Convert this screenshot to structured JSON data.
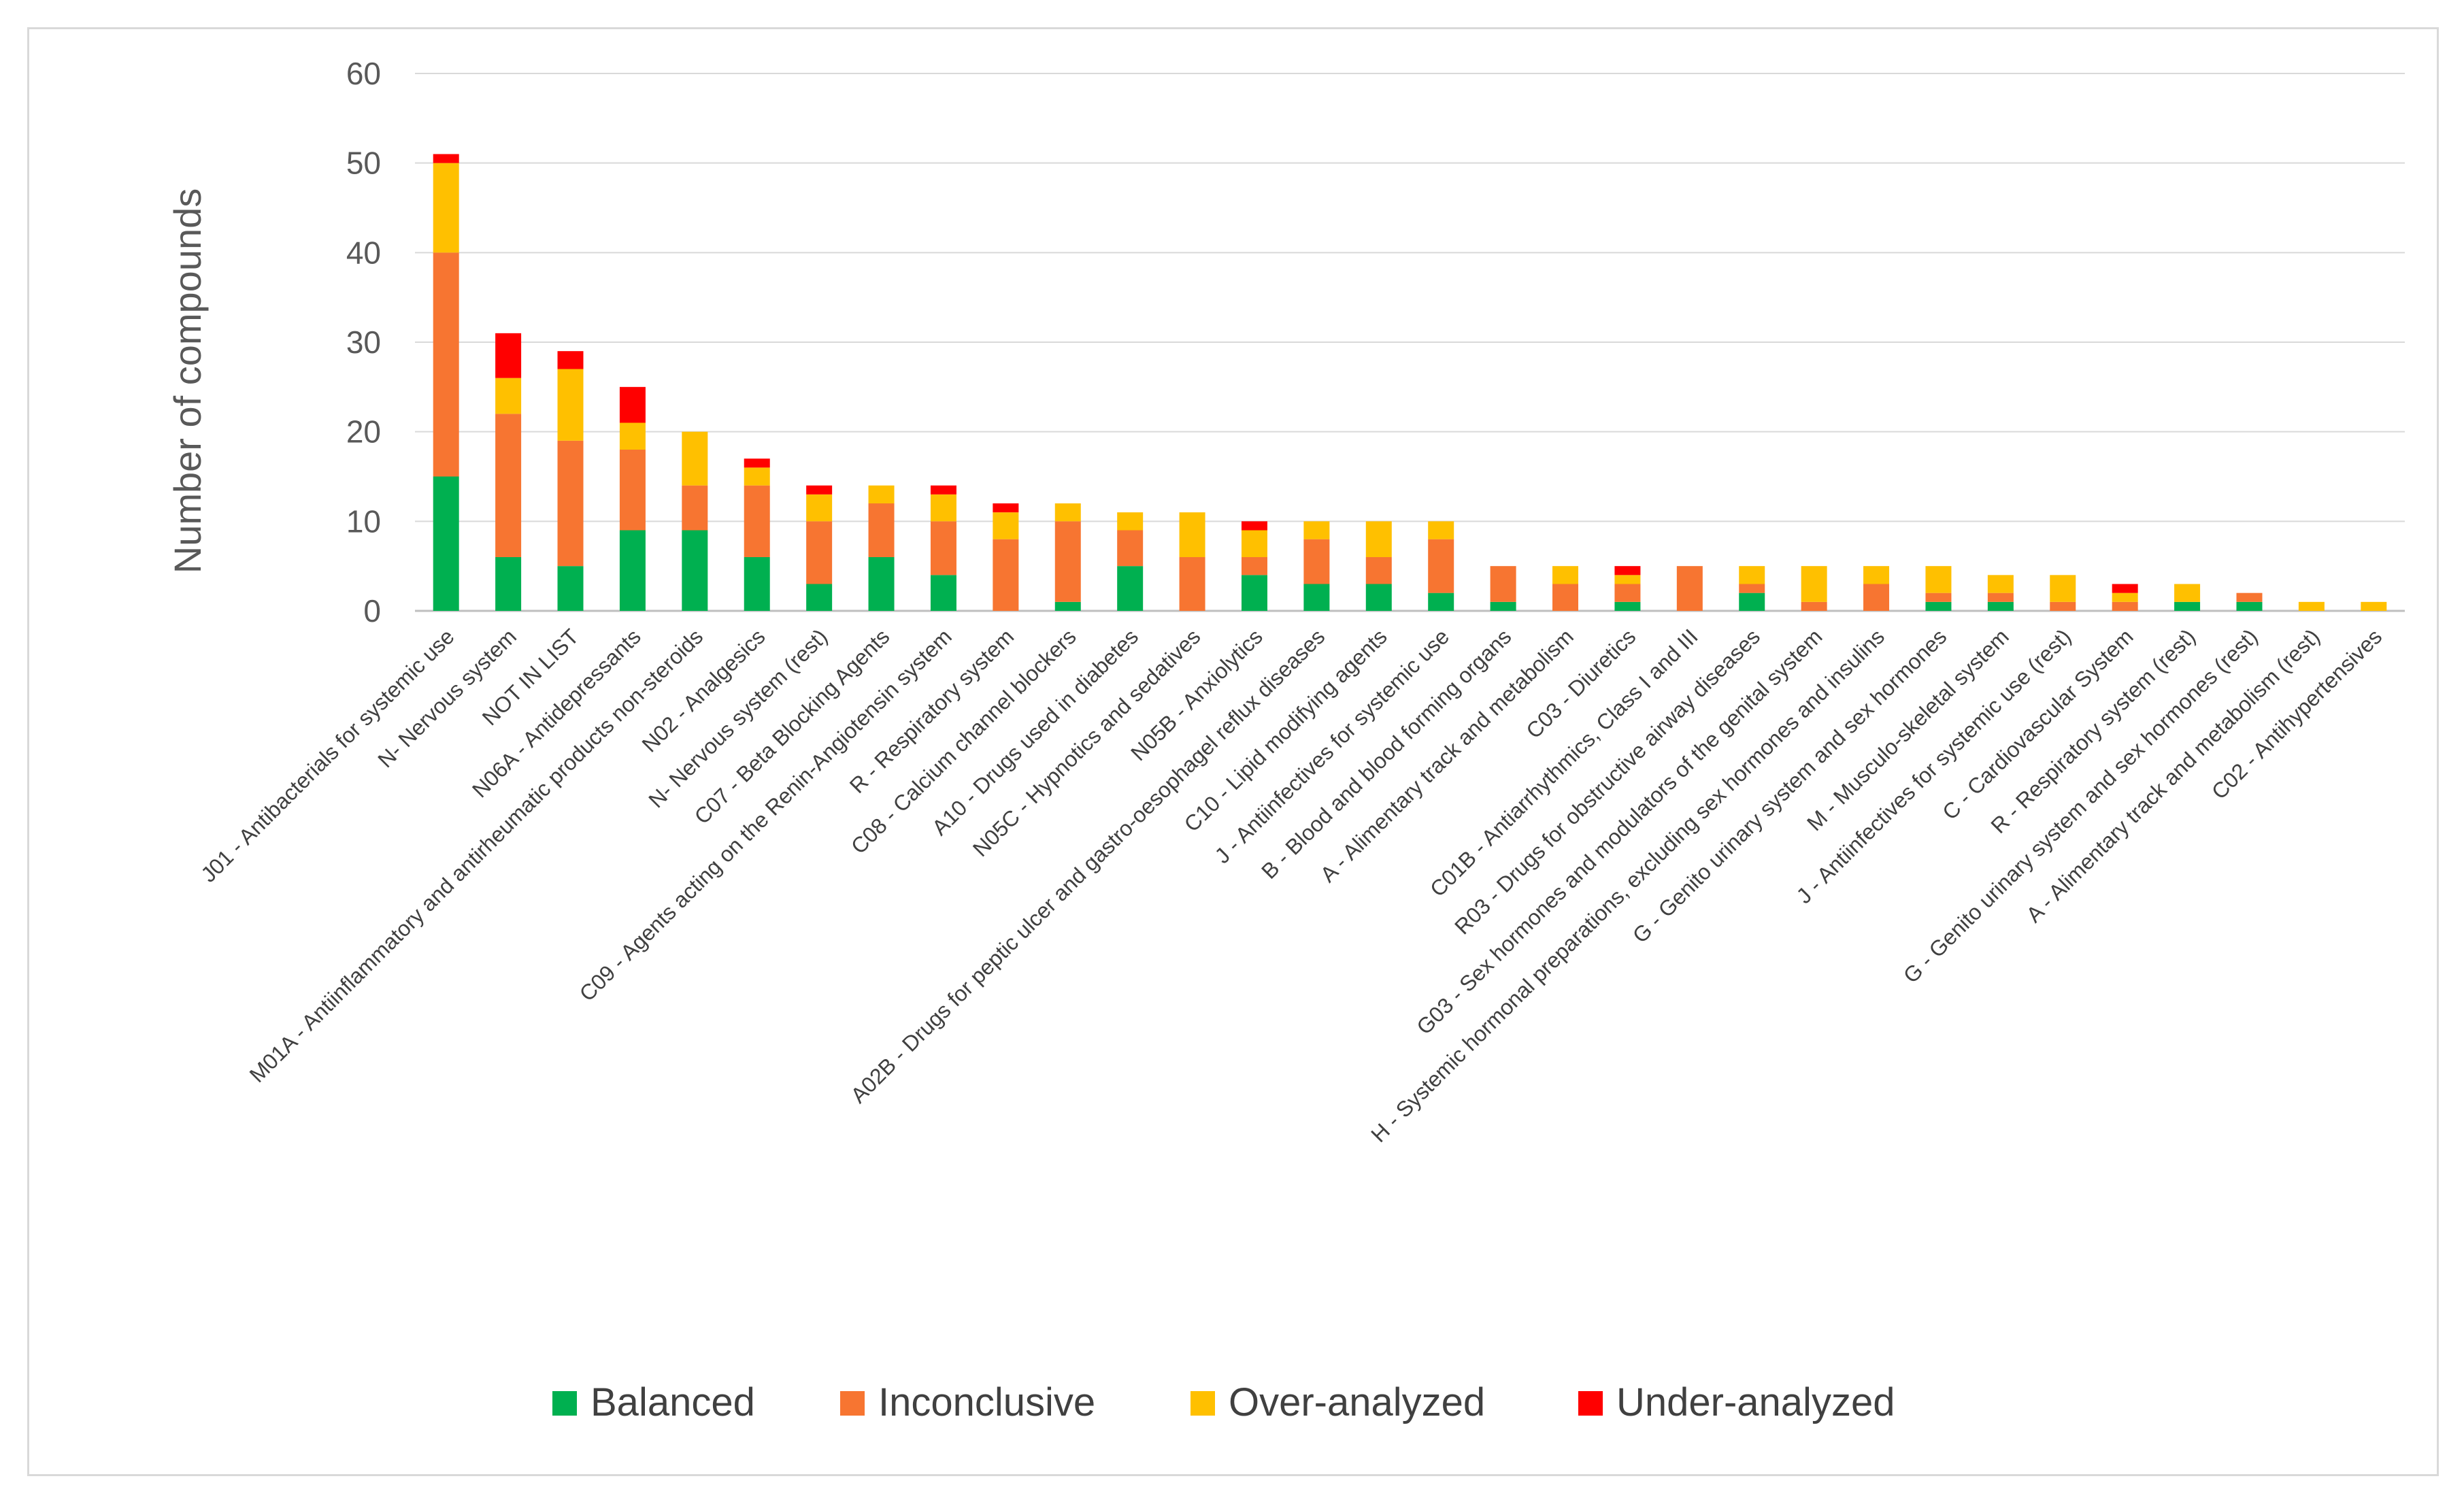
{
  "chart_data": {
    "type": "bar",
    "stacked": true,
    "title": "",
    "xlabel": "",
    "ylabel": "Number of compounds",
    "ylim": [
      0,
      60
    ],
    "yticks": [
      0,
      10,
      20,
      30,
      40,
      50,
      60
    ],
    "grid": true,
    "legend_position": "bottom",
    "categories": [
      "J01 - Antibacterials for systemic use",
      "N- Nervous system",
      "NOT IN LIST",
      "N06A - Antidepressants",
      "M01A - Antiinflammatory and antirheumatic products non-steroids",
      "N02 - Analgesics",
      "N- Nervous system (rest)",
      "C07 - Beta Blocking Agents",
      "C09 - Agents acting on the Renin-Angiotensin system",
      "R - Respiratory system",
      "C08 - Calcium channel blockers",
      "A10 - Drugs used in diabetes",
      "N05C - Hypnotics and sedatives",
      "N05B - Anxiolytics",
      "A02B - Drugs for peptic ulcer and gastro-oesophagel reflux diseases",
      "C10 - Lipid modifying agents",
      "J - Antiinfectives for systemic use",
      "B - Blood and blood forming organs",
      "A - Alimentary track and metabolism",
      "C03 - Diuretics",
      "C01B - Antiarrhythmics, Class I and III",
      "R03 - Drugs for obstructive airway diseases",
      "G03 - Sex hormones and modulators of the genital system",
      "H - Systemic hormonal preparations, excluding sex hormones and insulins",
      "G - Genito urinary system and sex hormones",
      "M - Musculo-skeletal system",
      "J - Antiinfectives for systemic use (rest)",
      "C - Cardiovascular System",
      "R - Respiratory system (rest)",
      "G - Genito urinary system and sex hormones (rest)",
      "A - Alimentary track and metabolism (rest)",
      "C02 - Antihypertensives"
    ],
    "series": [
      {
        "name": "Balanced",
        "color": "#00b050",
        "values": [
          15,
          6,
          5,
          9,
          9,
          6,
          3,
          6,
          4,
          0,
          1,
          5,
          0,
          4,
          3,
          3,
          2,
          1,
          0,
          1,
          0,
          2,
          0,
          0,
          1,
          1,
          0,
          0,
          1,
          1,
          0,
          0
        ]
      },
      {
        "name": "Inconclusive",
        "color": "#f77531",
        "values": [
          25,
          16,
          14,
          9,
          5,
          8,
          7,
          6,
          6,
          8,
          9,
          4,
          6,
          2,
          5,
          3,
          6,
          4,
          3,
          2,
          5,
          1,
          1,
          3,
          1,
          1,
          1,
          1,
          0,
          1,
          0,
          0
        ]
      },
      {
        "name": "Over-analyzed",
        "color": "#ffc000",
        "values": [
          10,
          4,
          8,
          3,
          6,
          2,
          3,
          2,
          3,
          3,
          2,
          2,
          5,
          3,
          2,
          4,
          2,
          0,
          2,
          1,
          0,
          2,
          4,
          2,
          3,
          2,
          3,
          1,
          2,
          0,
          1,
          1
        ]
      },
      {
        "name": "Under-analyzed",
        "color": "#ff0000",
        "values": [
          1,
          5,
          2,
          4,
          0,
          1,
          1,
          0,
          1,
          1,
          0,
          0,
          0,
          1,
          0,
          0,
          0,
          0,
          0,
          1,
          0,
          0,
          0,
          0,
          0,
          0,
          0,
          1,
          0,
          0,
          0,
          0
        ]
      }
    ]
  }
}
